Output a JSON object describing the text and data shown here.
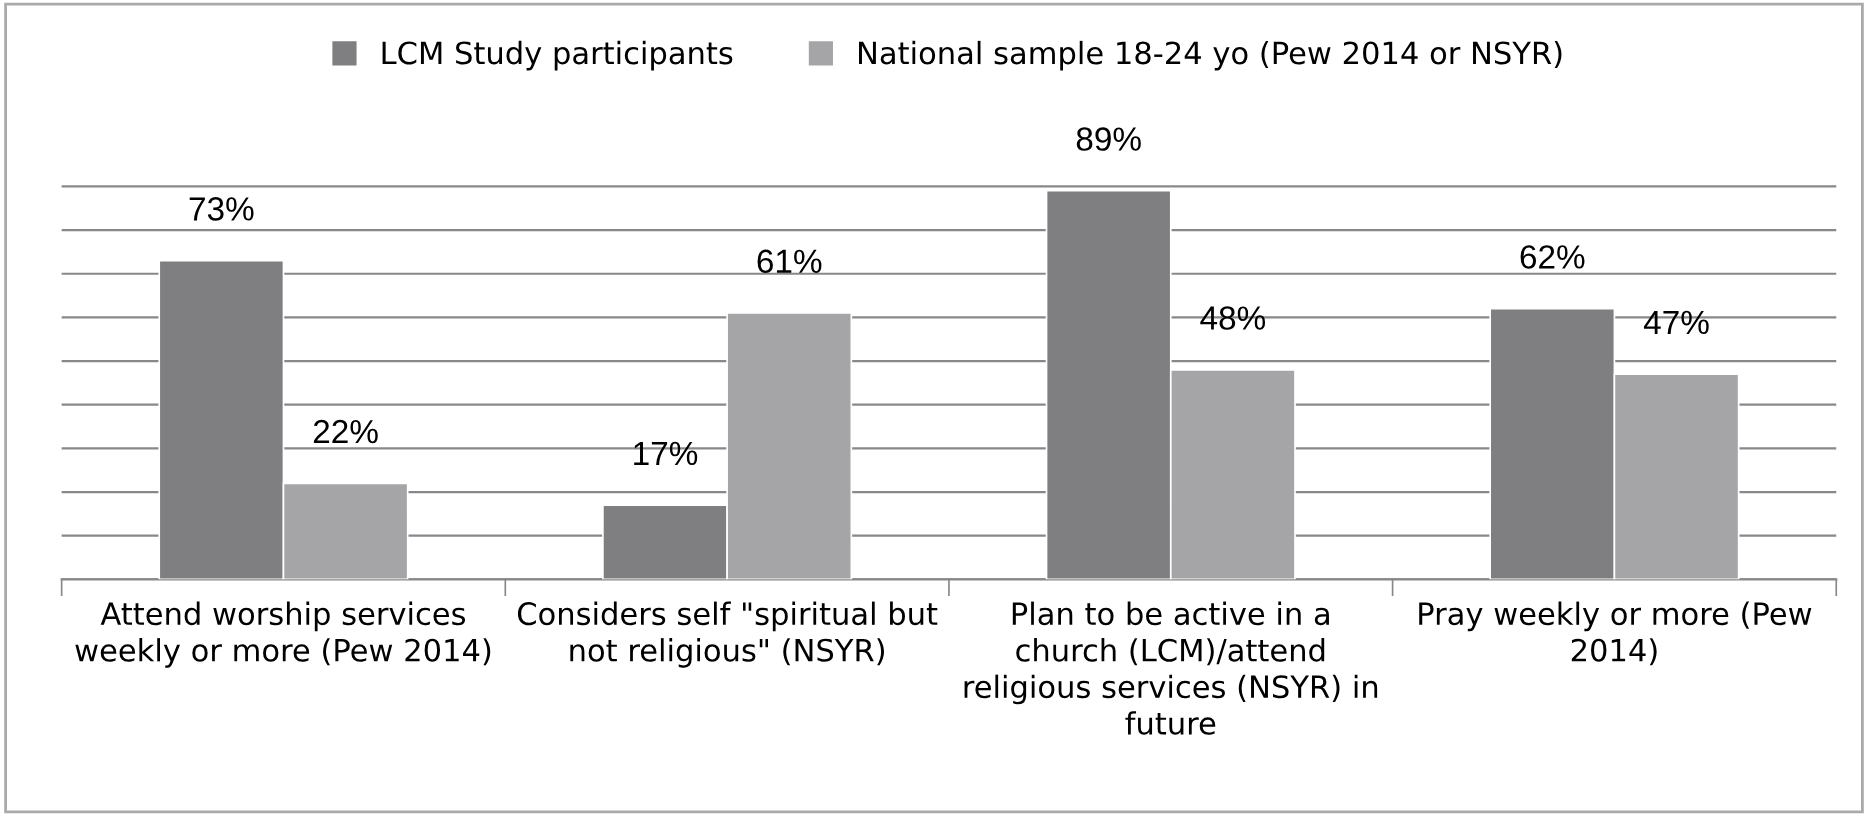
{
  "chart_data": {
    "type": "bar",
    "categories": [
      "Attend worship services\nweekly or more (Pew 2014)",
      "Considers self \"spiritual but\nnot religious\" (NSYR)",
      "Plan to be active in a\nchurch (LCM)/attend\nreligious services (NSYR) in\nfuture",
      "Pray weekly or more (Pew\n2014)"
    ],
    "series": [
      {
        "name": "LCM Study participants",
        "color": "#7f7f81",
        "values": [
          73,
          17,
          89,
          62
        ],
        "value_labels": [
          "73%",
          "17%",
          "89%",
          "62%"
        ]
      },
      {
        "name": "National sample 18-24 yo (Pew 2014 or NSYR)",
        "color": "#a5a5a8",
        "values": [
          22,
          61,
          48,
          47
        ],
        "value_labels": [
          "22%",
          "61%",
          "48%",
          "47%"
        ]
      }
    ],
    "tick_labels": "x",
    "grid": "y",
    "legend": "top"
  }
}
